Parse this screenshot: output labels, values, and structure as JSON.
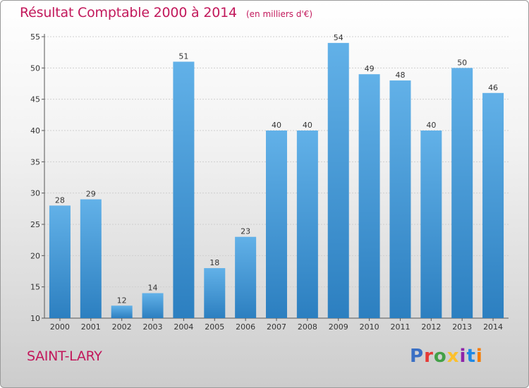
{
  "header": {
    "title": "Résultat Comptable 2000 à 2014",
    "unit": "(en milliers d'€)"
  },
  "footer": {
    "commune": "SAINT-LARY",
    "logo_text": "Proxiti"
  },
  "colors": {
    "title": "#c2185b",
    "bar_light": "#62b1e8",
    "bar_dark": "#2c7fc0",
    "grid": "#cfcfcf",
    "logo": [
      "#3a6fc4",
      "#e53935",
      "#43a047",
      "#fbc02d",
      "#8e24aa",
      "#1e88e5",
      "#f57c00"
    ]
  },
  "chart_data": {
    "type": "bar",
    "title": "Résultat Comptable 2000 à 2014",
    "xlabel": "",
    "ylabel": "",
    "categories": [
      "2000",
      "2001",
      "2002",
      "2003",
      "2004",
      "2005",
      "2006",
      "2007",
      "2008",
      "2009",
      "2010",
      "2011",
      "2012",
      "2013",
      "2014"
    ],
    "values": [
      28,
      29,
      12,
      14,
      51,
      18,
      23,
      40,
      40,
      54,
      49,
      48,
      40,
      50,
      46
    ],
    "ylim": [
      10,
      55
    ],
    "yticks": [
      10,
      15,
      20,
      25,
      30,
      35,
      40,
      45,
      50,
      55
    ],
    "grid": true
  }
}
